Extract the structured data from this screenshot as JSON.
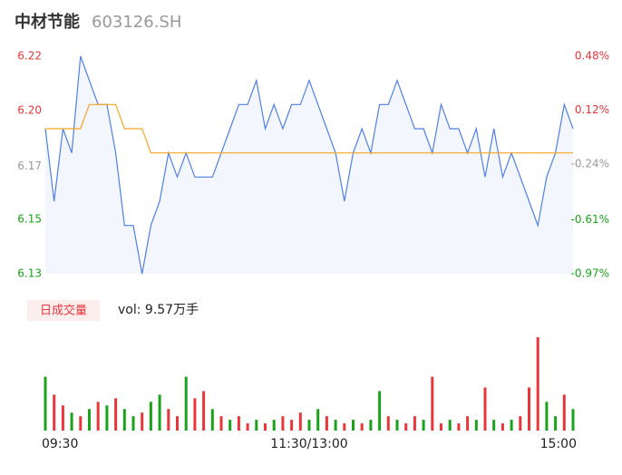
{
  "header": {
    "name": "中材节能",
    "code": "603126.SH"
  },
  "chart_data": [
    {
      "type": "line",
      "xlim": [
        0,
        240
      ],
      "xticks": [
        {
          "value": 0,
          "label": "09:30"
        },
        {
          "value": 120,
          "label": "11:30/13:00"
        },
        {
          "value": 240,
          "label": "15:00"
        }
      ],
      "ylim": [
        6.13,
        6.22
      ],
      "yticks": [
        {
          "value": 6.13,
          "label": "6.13",
          "color": "#1aa31a"
        },
        {
          "value": 6.1525,
          "label": "6.15",
          "color": "#1aa31a"
        },
        {
          "value": 6.1745,
          "label": "6.17",
          "color": "#999999"
        },
        {
          "value": 6.1975,
          "label": "6.20",
          "color": "#e8363b"
        },
        {
          "value": 6.22,
          "label": "6.22",
          "color": "#e8363b"
        }
      ],
      "y2lim": [
        -0.97,
        0.48
      ],
      "y2ticks": [
        {
          "value": -0.97,
          "label": "-0.97%",
          "color": "#1aa31a"
        },
        {
          "value": -0.61,
          "label": "-0.61%",
          "color": "#1aa31a"
        },
        {
          "value": -0.24,
          "label": "-0.24%",
          "color": "#999999"
        },
        {
          "value": 0.12,
          "label": "0.12%",
          "color": "#e8363b"
        },
        {
          "value": 0.48,
          "label": "0.48%",
          "color": "#e8363b"
        }
      ],
      "x": [
        0,
        4,
        8,
        12,
        16,
        20,
        24,
        28,
        32,
        36,
        40,
        44,
        48,
        52,
        56,
        60,
        64,
        68,
        72,
        76,
        80,
        84,
        88,
        92,
        96,
        100,
        104,
        108,
        112,
        116,
        120,
        124,
        128,
        132,
        136,
        140,
        144,
        148,
        152,
        156,
        160,
        164,
        168,
        172,
        176,
        180,
        184,
        188,
        192,
        196,
        200,
        204,
        208,
        212,
        216,
        220,
        224,
        228,
        232,
        236,
        240
      ],
      "series": [
        {
          "color": "#4f7fe8",
          "fill": "#f3f6fc",
          "values": [
            6.19,
            6.16,
            6.19,
            6.18,
            6.22,
            6.21,
            6.2,
            6.2,
            6.18,
            6.15,
            6.15,
            6.13,
            6.15,
            6.16,
            6.18,
            6.17,
            6.18,
            6.17,
            6.17,
            6.17,
            6.18,
            6.19,
            6.2,
            6.2,
            6.21,
            6.19,
            6.2,
            6.19,
            6.2,
            6.2,
            6.21,
            6.2,
            6.19,
            6.18,
            6.16,
            6.18,
            6.19,
            6.18,
            6.2,
            6.2,
            6.21,
            6.2,
            6.19,
            6.19,
            6.18,
            6.2,
            6.19,
            6.19,
            6.18,
            6.19,
            6.17,
            6.19,
            6.17,
            6.18,
            6.17,
            6.16,
            6.15,
            6.17,
            6.18,
            6.2,
            6.19
          ]
        },
        {
          "color": "#f5a623",
          "values": [
            6.19,
            6.19,
            6.19,
            6.19,
            6.19,
            6.2,
            6.2,
            6.2,
            6.2,
            6.19,
            6.19,
            6.19,
            6.18,
            6.18,
            6.18,
            6.18,
            6.18,
            6.18,
            6.18,
            6.18,
            6.18,
            6.18,
            6.18,
            6.18,
            6.18,
            6.18,
            6.18,
            6.18,
            6.18,
            6.18,
            6.18,
            6.18,
            6.18,
            6.18,
            6.18,
            6.18,
            6.18,
            6.18,
            6.18,
            6.18,
            6.18,
            6.18,
            6.18,
            6.18,
            6.18,
            6.18,
            6.18,
            6.18,
            6.18,
            6.18,
            6.18,
            6.18,
            6.18,
            6.18,
            6.18,
            6.18,
            6.18,
            6.18,
            6.18,
            6.18,
            6.18
          ]
        }
      ]
    },
    {
      "type": "bar",
      "legend": "日成交量",
      "legend_color": "#e8363b",
      "vol_label": "vol: 9.57万手",
      "xlim": [
        0,
        240
      ],
      "ylim": [
        0,
        2600
      ],
      "x": [
        0,
        4,
        8,
        12,
        16,
        20,
        24,
        28,
        32,
        36,
        40,
        44,
        48,
        52,
        56,
        60,
        64,
        68,
        72,
        76,
        80,
        84,
        88,
        92,
        96,
        100,
        104,
        108,
        112,
        116,
        120,
        124,
        128,
        132,
        136,
        140,
        144,
        148,
        152,
        156,
        160,
        164,
        168,
        172,
        176,
        180,
        184,
        188,
        192,
        196,
        200,
        204,
        208,
        212,
        216,
        220,
        224,
        228,
        232,
        236,
        240
      ],
      "values": [
        1500,
        1000,
        700,
        500,
        400,
        600,
        800,
        700,
        900,
        600,
        400,
        500,
        800,
        1000,
        600,
        400,
        1500,
        900,
        1100,
        600,
        400,
        300,
        400,
        200,
        300,
        200,
        300,
        400,
        300,
        500,
        300,
        600,
        400,
        300,
        200,
        300,
        200,
        300,
        1100,
        400,
        300,
        200,
        400,
        300,
        1500,
        200,
        300,
        200,
        400,
        300,
        1200,
        300,
        200,
        300,
        400,
        1200,
        2600,
        800,
        400,
        1000,
        600
      ],
      "colors": [
        "#1aa31a",
        "#e8363b",
        "#e8363b",
        "#1aa31a",
        "#e8363b",
        "#1aa31a",
        "#e8363b",
        "#1aa31a",
        "#e8363b",
        "#1aa31a",
        "#1aa31a",
        "#e8363b",
        "#1aa31a",
        "#1aa31a",
        "#e8363b",
        "#e8363b",
        "#1aa31a",
        "#e8363b",
        "#e8363b",
        "#1aa31a",
        "#e8363b",
        "#1aa31a",
        "#e8363b",
        "#e8363b",
        "#1aa31a",
        "#e8363b",
        "#1aa31a",
        "#e8363b",
        "#e8363b",
        "#e8363b",
        "#1aa31a",
        "#1aa31a",
        "#e8363b",
        "#1aa31a",
        "#e8363b",
        "#1aa31a",
        "#e8363b",
        "#1aa31a",
        "#1aa31a",
        "#e8363b",
        "#1aa31a",
        "#e8363b",
        "#e8363b",
        "#1aa31a",
        "#e8363b",
        "#e8363b",
        "#1aa31a",
        "#e8363b",
        "#e8363b",
        "#1aa31a",
        "#e8363b",
        "#1aa31a",
        "#e8363b",
        "#1aa31a",
        "#e8363b",
        "#e8363b",
        "#e8363b",
        "#1aa31a",
        "#1aa31a",
        "#e8363b",
        "#1aa31a"
      ]
    }
  ]
}
